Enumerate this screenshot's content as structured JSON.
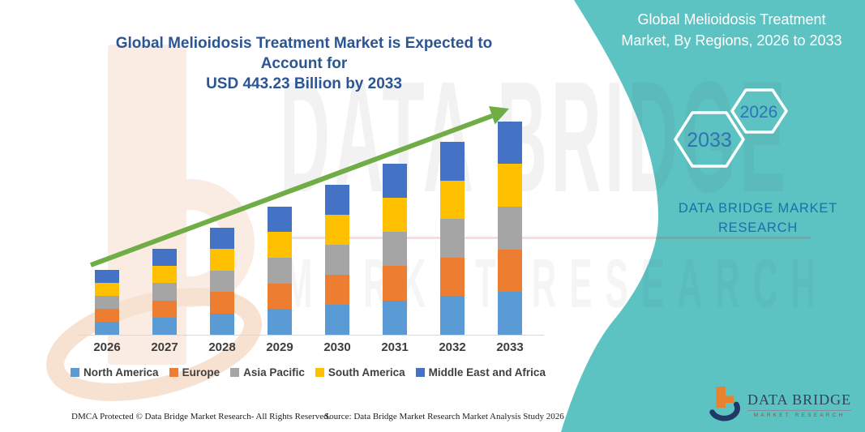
{
  "header": {
    "title_line1": "Global Melioidosis Treatment Market is Expected to Account for",
    "title_line2": "USD 443.23 Billion by 2033",
    "title_color": "#2B5693"
  },
  "side_panel": {
    "background_color": "#5CC3C2",
    "title_line1": "Global Melioidosis Treatment",
    "title_line2": "Market, By Regions, 2026 to 2033",
    "hexagon_end_year": "2033",
    "hexagon_start_year": "2026",
    "hexagon_year_color": "#2E74B5",
    "brand_line1": "DATA BRIDGE MARKET",
    "brand_line2": "RESEARCH",
    "brand_text_color": "#1C6FA9"
  },
  "watermark": {
    "line1": "DATA BRIDGE",
    "line2": "MARKET RESEARCH"
  },
  "chart_data": {
    "type": "bar",
    "stacked": true,
    "title": "Global Melioidosis Treatment Market is Expected to Account for USD 443.23 Billion by 2033",
    "unit": "USD Billion",
    "categories": [
      "2026",
      "2027",
      "2028",
      "2029",
      "2030",
      "2031",
      "2032",
      "2033"
    ],
    "series": [
      {
        "name": "North America",
        "color": "#5B9BD5",
        "values": [
          27.0,
          35.7,
          44.5,
          53.2,
          62.2,
          71.1,
          79.9,
          88.6
        ]
      },
      {
        "name": "Europe",
        "color": "#ED7D31",
        "values": [
          27.0,
          35.7,
          44.5,
          53.2,
          62.2,
          71.1,
          79.9,
          88.6
        ]
      },
      {
        "name": "Asia Pacific",
        "color": "#A5A5A5",
        "values": [
          27.0,
          35.7,
          44.5,
          53.2,
          62.2,
          71.1,
          79.9,
          88.6
        ]
      },
      {
        "name": "South America",
        "color": "#FFC000",
        "values": [
          27.0,
          35.7,
          44.5,
          53.2,
          62.2,
          71.1,
          79.9,
          88.6
        ]
      },
      {
        "name": "Middle East and Africa",
        "color": "#4472C4",
        "values": [
          27.0,
          35.7,
          44.5,
          53.2,
          62.2,
          71.1,
          79.9,
          88.6
        ]
      }
    ],
    "totals_estimated": [
      135,
      178.5,
      222.5,
      266,
      311,
      355.5,
      399.5,
      443.23
    ],
    "highlight_value": "USD 443.23 Billion by 2033",
    "trend_arrow_color": "#70AD47",
    "axis_line_color": "#D8D8D8",
    "legend_position": "bottom",
    "gridlines": false,
    "xlabel": "",
    "ylabel": "",
    "note": "Regional splits estimated from segment heights (approximately equal fifths each year); only the 2033 total 443.23 is labeled in the image"
  },
  "footer": {
    "dmca": "DMCA Protected © Data Bridge Market Research-  All Rights Reserved.",
    "source": "Source: Data Bridge Market Research  Market Analysis Study 2026"
  },
  "logo": {
    "brand": "DATA BRIDGE",
    "sub": "MARKET RESEARCH"
  }
}
